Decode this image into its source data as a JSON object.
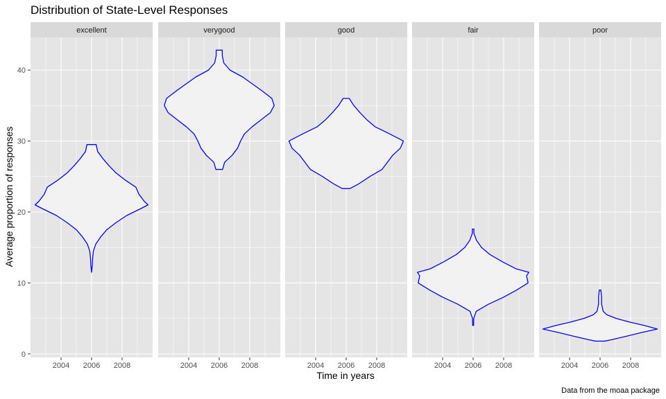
{
  "chart_data": {
    "type": "violin",
    "title": "Distribution of State-Level Responses",
    "xlabel": "Time in years",
    "ylabel": "Average proportion of responses",
    "caption": "Data from the moaa package",
    "x_ticks": [
      2004,
      2006,
      2008
    ],
    "y_ticks": [
      0,
      10,
      20,
      30,
      40
    ],
    "xlim": [
      2002,
      2010
    ],
    "ylim": [
      -0.5,
      44.6
    ],
    "x_center": 2006,
    "colors": {
      "outline": "#0000ff",
      "fill": "#f2f2f2",
      "panel": "#e5e5e5",
      "strip": "#d9d9d9",
      "grid": "#ffffff"
    },
    "facets": [
      {
        "label": "excellent",
        "profile": [
          [
            11.5,
            0.0
          ],
          [
            12.5,
            0.05
          ],
          [
            13.5,
            0.07
          ],
          [
            14.5,
            0.12
          ],
          [
            15.5,
            0.28
          ],
          [
            16.5,
            0.6
          ],
          [
            17.5,
            1.0
          ],
          [
            18.5,
            1.6
          ],
          [
            19.5,
            2.3
          ],
          [
            20.5,
            3.25
          ],
          [
            21.0,
            3.7
          ],
          [
            21.5,
            3.45
          ],
          [
            22.5,
            3.1
          ],
          [
            23.5,
            2.9
          ],
          [
            24.5,
            2.2
          ],
          [
            25.5,
            1.6
          ],
          [
            26.5,
            1.15
          ],
          [
            27.5,
            0.75
          ],
          [
            28.5,
            0.4
          ],
          [
            29.5,
            0.3
          ]
        ]
      },
      {
        "label": "verygood",
        "profile": [
          [
            26.0,
            0.22
          ],
          [
            27.0,
            0.35
          ],
          [
            28.0,
            0.85
          ],
          [
            29.0,
            1.2
          ],
          [
            30.0,
            1.4
          ],
          [
            31.0,
            1.65
          ],
          [
            32.0,
            2.15
          ],
          [
            33.0,
            2.75
          ],
          [
            34.0,
            3.35
          ],
          [
            35.0,
            3.6
          ],
          [
            36.0,
            3.45
          ],
          [
            37.0,
            2.85
          ],
          [
            38.0,
            2.2
          ],
          [
            39.0,
            1.55
          ],
          [
            40.0,
            0.7
          ],
          [
            41.0,
            0.3
          ],
          [
            42.0,
            0.2
          ],
          [
            42.8,
            0.2
          ]
        ]
      },
      {
        "label": "good",
        "profile": [
          [
            23.3,
            0.25
          ],
          [
            24.0,
            0.85
          ],
          [
            25.0,
            1.55
          ],
          [
            26.0,
            2.35
          ],
          [
            27.0,
            2.7
          ],
          [
            28.0,
            3.05
          ],
          [
            29.0,
            3.55
          ],
          [
            30.0,
            3.75
          ],
          [
            31.0,
            2.85
          ],
          [
            32.0,
            1.9
          ],
          [
            33.0,
            1.35
          ],
          [
            34.0,
            0.9
          ],
          [
            35.0,
            0.5
          ],
          [
            36.0,
            0.2
          ]
        ]
      },
      {
        "label": "fair",
        "profile": [
          [
            4.0,
            0.03
          ],
          [
            5.0,
            0.04
          ],
          [
            6.0,
            0.2
          ],
          [
            7.0,
            1.0
          ],
          [
            8.0,
            2.0
          ],
          [
            9.0,
            2.85
          ],
          [
            10.0,
            3.6
          ],
          [
            10.5,
            3.55
          ],
          [
            11.0,
            3.5
          ],
          [
            11.5,
            3.65
          ],
          [
            12.0,
            2.8
          ],
          [
            13.0,
            1.9
          ],
          [
            14.0,
            1.1
          ],
          [
            15.0,
            0.55
          ],
          [
            16.0,
            0.22
          ],
          [
            17.0,
            0.05
          ],
          [
            17.6,
            0.05
          ]
        ]
      },
      {
        "label": "poor",
        "profile": [
          [
            1.8,
            0.3
          ],
          [
            2.0,
            0.75
          ],
          [
            2.5,
            1.75
          ],
          [
            3.0,
            2.7
          ],
          [
            3.5,
            3.75
          ],
          [
            4.0,
            2.9
          ],
          [
            4.5,
            1.9
          ],
          [
            5.0,
            1.05
          ],
          [
            5.5,
            0.45
          ],
          [
            6.0,
            0.2
          ],
          [
            6.5,
            0.15
          ],
          [
            7.0,
            0.1
          ],
          [
            8.0,
            0.1
          ],
          [
            9.0,
            0.05
          ]
        ]
      }
    ]
  }
}
